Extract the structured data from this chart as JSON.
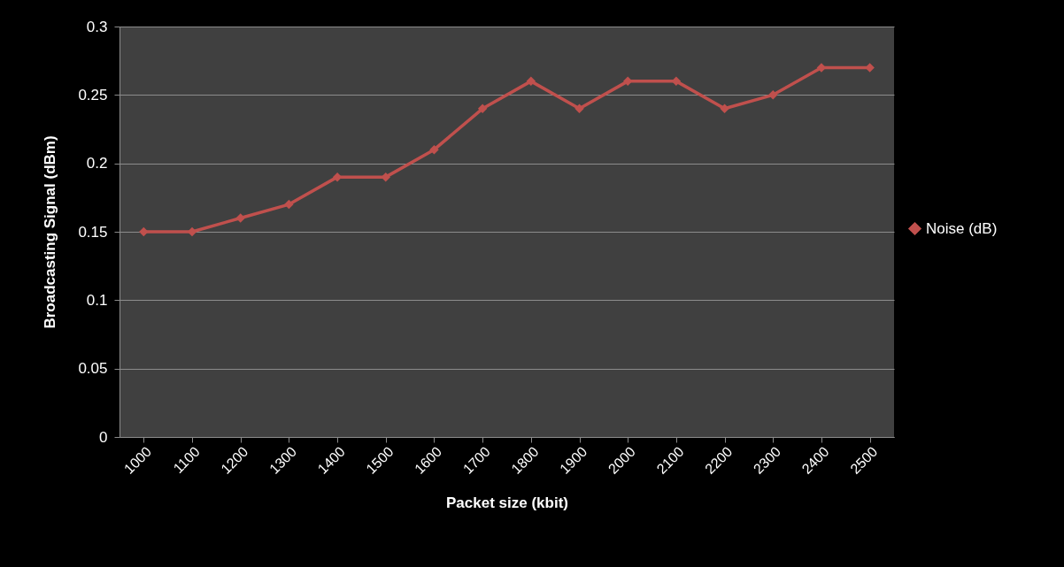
{
  "chart_data": {
    "type": "line",
    "xlabel": "Packet size (kbit)",
    "ylabel": "Broadcasting Signal (dBm)",
    "categories": [
      "1000",
      "1100",
      "1200",
      "1300",
      "1400",
      "1500",
      "1600",
      "1700",
      "1800",
      "1900",
      "2000",
      "2100",
      "2200",
      "2300",
      "2400",
      "2500"
    ],
    "series": [
      {
        "name": "Noise (dB)",
        "color": "#c0504d",
        "values": [
          0.15,
          0.15,
          0.16,
          0.17,
          0.19,
          0.19,
          0.21,
          0.24,
          0.26,
          0.24,
          0.26,
          0.26,
          0.24,
          0.25,
          0.27,
          0.27
        ]
      }
    ],
    "ylim": [
      0,
      0.3
    ],
    "yticks": [
      0,
      0.05,
      0.1,
      0.15,
      0.2,
      0.25,
      0.3
    ],
    "grid": "y",
    "legend": "right",
    "marker": "diamond",
    "line_style": "solid"
  }
}
